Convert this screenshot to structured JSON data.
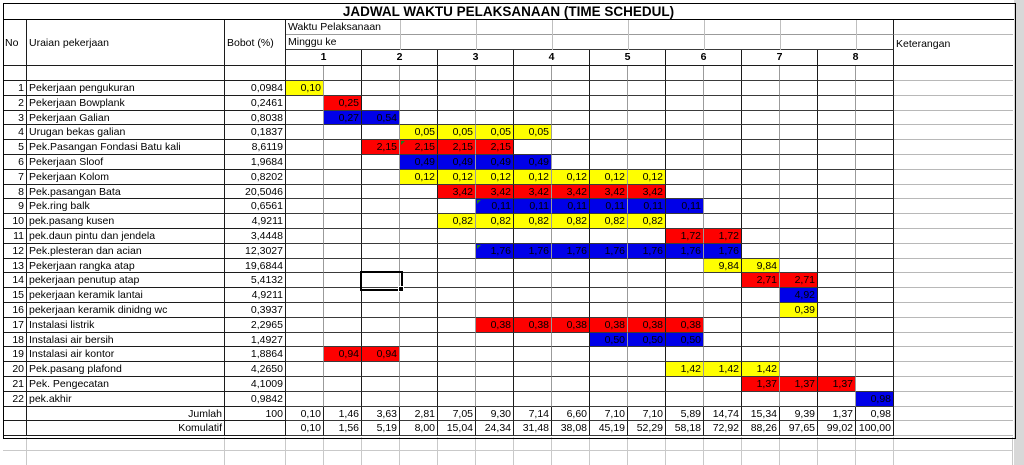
{
  "title": "JADWAL WAKTU PELAKSANAAN (TIME SCHEDUL)",
  "header": {
    "no": "No",
    "uraian": "Uraian pekerjaan",
    "bobot": "Bobot (%)",
    "waktu": "Waktu Pelaksanaan",
    "minggu": "Minggu ke",
    "weeks": [
      "1",
      "2",
      "3",
      "4",
      "5",
      "6",
      "7",
      "8"
    ],
    "keterangan": "Keterangan"
  },
  "colors": {
    "yellow": "#ffff00",
    "red": "#fe0000",
    "blue": "#0000e8"
  },
  "rows": [
    {
      "no": "1",
      "uraian": "Pekerjaan pengukuran",
      "bobot": "0,0984",
      "cells": [
        {
          "col": 1,
          "color": "yellow",
          "value": "0,10"
        }
      ]
    },
    {
      "no": "2",
      "uraian": "Pekerjaan Bowplank",
      "bobot": "0,2461",
      "cells": [
        {
          "col": 2,
          "color": "red",
          "value": "0,25"
        }
      ]
    },
    {
      "no": "3",
      "uraian": "Pekerjaan Galian",
      "bobot": "0,8038",
      "cells": [
        {
          "col": 2,
          "color": "blue",
          "value": "0,27"
        },
        {
          "col": 3,
          "color": "blue",
          "value": "0,54"
        }
      ]
    },
    {
      "no": "4",
      "uraian": "Urugan bekas galian",
      "bobot": "0,1837",
      "cells": [
        {
          "col": 4,
          "color": "yellow",
          "value": "0,05"
        },
        {
          "col": 5,
          "color": "yellow",
          "value": "0,05"
        },
        {
          "col": 6,
          "color": "yellow",
          "value": "0,05"
        },
        {
          "col": 7,
          "color": "yellow",
          "value": "0,05"
        }
      ]
    },
    {
      "no": "5",
      "uraian": "Pek.Pasangan Fondasi Batu kali",
      "bobot": "8,6119",
      "cells": [
        {
          "col": 3,
          "color": "red",
          "value": "2,15"
        },
        {
          "col": 4,
          "color": "red",
          "value": "2,15"
        },
        {
          "col": 5,
          "color": "red",
          "value": "2,15"
        },
        {
          "col": 6,
          "color": "red",
          "value": "2,15"
        }
      ]
    },
    {
      "no": "6",
      "uraian": "Pekerjaan Sloof",
      "bobot": "1,9684",
      "cells": [
        {
          "col": 4,
          "color": "blue",
          "value": "0,49"
        },
        {
          "col": 5,
          "color": "blue",
          "value": "0,49"
        },
        {
          "col": 6,
          "color": "blue",
          "value": "0,49"
        },
        {
          "col": 7,
          "color": "blue",
          "value": "0,49"
        }
      ]
    },
    {
      "no": "7",
      "uraian": "Pekerjaan Kolom",
      "bobot": "0,8202",
      "cells": [
        {
          "col": 4,
          "color": "yellow",
          "value": "0,12"
        },
        {
          "col": 5,
          "color": "yellow",
          "value": "0,12"
        },
        {
          "col": 6,
          "color": "yellow",
          "value": "0,12"
        },
        {
          "col": 7,
          "color": "yellow",
          "value": "0,12"
        },
        {
          "col": 8,
          "color": "yellow",
          "value": "0,12"
        },
        {
          "col": 9,
          "color": "yellow",
          "value": "0,12"
        },
        {
          "col": 10,
          "color": "yellow",
          "value": "0,12"
        }
      ]
    },
    {
      "no": "8",
      "uraian": "Pek.pasangan Bata",
      "bobot": "20,5046",
      "cells": [
        {
          "col": 5,
          "color": "red",
          "value": "3,42"
        },
        {
          "col": 6,
          "color": "red",
          "value": "3,42"
        },
        {
          "col": 7,
          "color": "red",
          "value": "3,42"
        },
        {
          "col": 8,
          "color": "red",
          "value": "3,42"
        },
        {
          "col": 9,
          "color": "red",
          "value": "3,42"
        },
        {
          "col": 10,
          "color": "red",
          "value": "3,42"
        }
      ]
    },
    {
      "no": "9",
      "uraian": "Pek.ring balk",
      "bobot": "0,6561",
      "cells": [
        {
          "col": 6,
          "color": "blue",
          "value": "0,11"
        },
        {
          "col": 7,
          "color": "blue",
          "value": "0,11"
        },
        {
          "col": 8,
          "color": "blue",
          "value": "0,11"
        },
        {
          "col": 9,
          "color": "blue",
          "value": "0,11"
        },
        {
          "col": 10,
          "color": "blue",
          "value": "0,11"
        },
        {
          "col": 11,
          "color": "blue",
          "value": "0,11"
        }
      ]
    },
    {
      "no": "10",
      "uraian": "pek.pasang kusen",
      "bobot": "4,9211",
      "cells": [
        {
          "col": 5,
          "color": "yellow",
          "value": "0,82"
        },
        {
          "col": 6,
          "color": "yellow",
          "value": "0,82"
        },
        {
          "col": 7,
          "color": "yellow",
          "value": "0,82"
        },
        {
          "col": 8,
          "color": "yellow",
          "value": "0,82"
        },
        {
          "col": 9,
          "color": "yellow",
          "value": "0,82"
        },
        {
          "col": 10,
          "color": "yellow",
          "value": "0,82"
        }
      ]
    },
    {
      "no": "11",
      "uraian": "pek.daun pintu dan jendela",
      "bobot": "3,4448",
      "cells": [
        {
          "col": 11,
          "color": "red",
          "value": "1,72"
        },
        {
          "col": 12,
          "color": "red",
          "value": "1,72"
        }
      ]
    },
    {
      "no": "12",
      "uraian": "Pek.plesteran dan acian",
      "bobot": "12,3027",
      "cells": [
        {
          "col": 6,
          "color": "blue",
          "value": "1,76"
        },
        {
          "col": 7,
          "color": "blue",
          "value": "1,76"
        },
        {
          "col": 8,
          "color": "blue",
          "value": "1,76"
        },
        {
          "col": 9,
          "color": "blue",
          "value": "1,76"
        },
        {
          "col": 10,
          "color": "blue",
          "value": "1,76"
        },
        {
          "col": 11,
          "color": "blue",
          "value": "1,76"
        },
        {
          "col": 12,
          "color": "blue",
          "value": "1,76"
        }
      ]
    },
    {
      "no": "13",
      "uraian": "Pekerjaan rangka atap",
      "bobot": "19,6844",
      "cells": [
        {
          "col": 12,
          "color": "yellow",
          "value": "9,84"
        },
        {
          "col": 13,
          "color": "yellow",
          "value": "9,84"
        }
      ]
    },
    {
      "no": "14",
      "uraian": "pekerjaan penutup atap",
      "bobot": "5,4132",
      "cells": [
        {
          "col": 13,
          "color": "red",
          "value": "2,71"
        },
        {
          "col": 14,
          "color": "red",
          "value": "2,71"
        }
      ]
    },
    {
      "no": "15",
      "uraian": "pekerjaan keramik lantai",
      "bobot": "4,9211",
      "cells": [
        {
          "col": 14,
          "color": "blue",
          "value": "4,92"
        }
      ]
    },
    {
      "no": "16",
      "uraian": "pekerjaan keramik dinidng wc",
      "bobot": "0,3937",
      "cells": [
        {
          "col": 14,
          "color": "yellow",
          "value": "0,39"
        }
      ]
    },
    {
      "no": "17",
      "uraian": "Instalasi listrik",
      "bobot": "2,2965",
      "cells": [
        {
          "col": 6,
          "color": "red",
          "value": "0,38"
        },
        {
          "col": 7,
          "color": "red",
          "value": "0,38"
        },
        {
          "col": 8,
          "color": "red",
          "value": "0,38"
        },
        {
          "col": 9,
          "color": "red",
          "value": "0,38"
        },
        {
          "col": 10,
          "color": "red",
          "value": "0,38"
        },
        {
          "col": 11,
          "color": "red",
          "value": "0,38"
        }
      ]
    },
    {
      "no": "18",
      "uraian": "Instalasi air bersih",
      "bobot": "1,4927",
      "cells": [
        {
          "col": 9,
          "color": "blue",
          "value": "0,50"
        },
        {
          "col": 10,
          "color": "blue",
          "value": "0,50"
        },
        {
          "col": 11,
          "color": "blue",
          "value": "0,50"
        }
      ]
    },
    {
      "no": "19",
      "uraian": "Instalasi air kontor",
      "bobot": "1,8864",
      "cells": [
        {
          "col": 2,
          "color": "red",
          "value": "0,94"
        },
        {
          "col": 3,
          "color": "red",
          "value": "0,94"
        }
      ]
    },
    {
      "no": "20",
      "uraian": "Pek.pasang plafond",
      "bobot": "4,2650",
      "cells": [
        {
          "col": 11,
          "color": "yellow",
          "value": "1,42"
        },
        {
          "col": 12,
          "color": "yellow",
          "value": "1,42"
        },
        {
          "col": 13,
          "color": "yellow",
          "value": "1,42"
        }
      ]
    },
    {
      "no": "21",
      "uraian": "Pek. Pengecatan",
      "bobot": "4,1009",
      "cells": [
        {
          "col": 13,
          "color": "red",
          "value": "1,37"
        },
        {
          "col": 14,
          "color": "red",
          "value": "1,37"
        },
        {
          "col": 15,
          "color": "red",
          "value": "1,37"
        }
      ]
    },
    {
      "no": "22",
      "uraian": "pek.akhir",
      "bobot": "0,9842",
      "cells": [
        {
          "col": 16,
          "color": "blue",
          "value": "0,98"
        }
      ]
    }
  ],
  "summary": {
    "jumlah_label": "Jumlah",
    "jumlah_bobot": "100",
    "jumlah": [
      "0,10",
      "1,46",
      "3,63",
      "2,81",
      "7,05",
      "9,30",
      "7,14",
      "6,60",
      "7,10",
      "7,10",
      "5,89",
      "14,74",
      "15,34",
      "9,39",
      "1,37",
      "0,98"
    ],
    "komulatif_label": "Komulatif",
    "komulatif": [
      "0,10",
      "1,56",
      "5,19",
      "8,00",
      "15,04",
      "24,34",
      "31,48",
      "38,08",
      "45,19",
      "52,29",
      "58,18",
      "72,92",
      "88,26",
      "97,65",
      "99,02",
      "100,00"
    ]
  },
  "selected_cell": {
    "row": 14,
    "week_subcolumn": 3
  },
  "error_markers": [
    {
      "row": 5,
      "col": 4
    },
    {
      "row": 9,
      "col": 6
    },
    {
      "row": 12,
      "col": 6
    }
  ]
}
